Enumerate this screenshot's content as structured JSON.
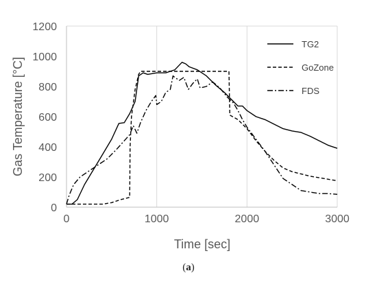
{
  "caption": {
    "open": "(",
    "letter": "a",
    "close": ")"
  },
  "chart_data": {
    "type": "line",
    "title": "",
    "xlabel": "Time [sec]",
    "ylabel": "Gas Temperature [°C]",
    "xlim": [
      0,
      3000
    ],
    "ylim": [
      0,
      1200
    ],
    "xticks": [
      "0",
      "1000",
      "2000",
      "3000"
    ],
    "yticks": [
      "0",
      "200",
      "400",
      "600",
      "800",
      "1000",
      "1200"
    ],
    "grid": "vertical",
    "legend_position": "top-right",
    "series": [
      {
        "name": "TG2",
        "style": "solid",
        "points": [
          [
            0,
            20
          ],
          [
            60,
            20
          ],
          [
            120,
            50
          ],
          [
            200,
            150
          ],
          [
            300,
            250
          ],
          [
            400,
            350
          ],
          [
            500,
            450
          ],
          [
            580,
            555
          ],
          [
            640,
            560
          ],
          [
            700,
            620
          ],
          [
            760,
            700
          ],
          [
            800,
            870
          ],
          [
            850,
            890
          ],
          [
            900,
            880
          ],
          [
            1000,
            890
          ],
          [
            1100,
            890
          ],
          [
            1200,
            910
          ],
          [
            1280,
            960
          ],
          [
            1320,
            950
          ],
          [
            1360,
            930
          ],
          [
            1450,
            910
          ],
          [
            1550,
            870
          ],
          [
            1650,
            810
          ],
          [
            1750,
            760
          ],
          [
            1850,
            700
          ],
          [
            1900,
            670
          ],
          [
            1950,
            670
          ],
          [
            2000,
            640
          ],
          [
            2100,
            600
          ],
          [
            2200,
            580
          ],
          [
            2300,
            550
          ],
          [
            2400,
            520
          ],
          [
            2500,
            505
          ],
          [
            2600,
            495
          ],
          [
            2700,
            470
          ],
          [
            2800,
            440
          ],
          [
            2900,
            410
          ],
          [
            3000,
            390
          ]
        ]
      },
      {
        "name": "GoZone",
        "style": "dashed",
        "points": [
          [
            0,
            20
          ],
          [
            400,
            20
          ],
          [
            500,
            30
          ],
          [
            600,
            50
          ],
          [
            700,
            65
          ],
          [
            705,
            400
          ],
          [
            720,
            600
          ],
          [
            760,
            780
          ],
          [
            800,
            880
          ],
          [
            820,
            900
          ],
          [
            1800,
            900
          ],
          [
            1810,
            610
          ],
          [
            1900,
            580
          ],
          [
            1950,
            550
          ],
          [
            2000,
            520
          ],
          [
            2100,
            440
          ],
          [
            2200,
            370
          ],
          [
            2300,
            310
          ],
          [
            2400,
            260
          ],
          [
            2500,
            235
          ],
          [
            2600,
            220
          ],
          [
            2700,
            205
          ],
          [
            2800,
            195
          ],
          [
            2900,
            185
          ],
          [
            3000,
            175
          ]
        ]
      },
      {
        "name": "FDS",
        "style": "dash-dot",
        "points": [
          [
            0,
            20
          ],
          [
            30,
            80
          ],
          [
            80,
            150
          ],
          [
            150,
            200
          ],
          [
            250,
            240
          ],
          [
            350,
            280
          ],
          [
            450,
            320
          ],
          [
            550,
            380
          ],
          [
            640,
            440
          ],
          [
            700,
            480
          ],
          [
            740,
            540
          ],
          [
            780,
            490
          ],
          [
            820,
            560
          ],
          [
            880,
            640
          ],
          [
            940,
            700
          ],
          [
            990,
            740
          ],
          [
            1000,
            680
          ],
          [
            1050,
            700
          ],
          [
            1100,
            760
          ],
          [
            1150,
            780
          ],
          [
            1180,
            870
          ],
          [
            1200,
            860
          ],
          [
            1250,
            840
          ],
          [
            1300,
            860
          ],
          [
            1350,
            780
          ],
          [
            1400,
            820
          ],
          [
            1450,
            850
          ],
          [
            1480,
            790
          ],
          [
            1550,
            800
          ],
          [
            1620,
            830
          ],
          [
            1700,
            790
          ],
          [
            1780,
            730
          ],
          [
            1850,
            690
          ],
          [
            1900,
            640
          ],
          [
            1950,
            580
          ],
          [
            2000,
            530
          ],
          [
            2100,
            450
          ],
          [
            2200,
            370
          ],
          [
            2300,
            280
          ],
          [
            2400,
            190
          ],
          [
            2500,
            150
          ],
          [
            2600,
            110
          ],
          [
            2700,
            100
          ],
          [
            2800,
            90
          ],
          [
            2900,
            90
          ],
          [
            3000,
            85
          ]
        ]
      }
    ]
  }
}
